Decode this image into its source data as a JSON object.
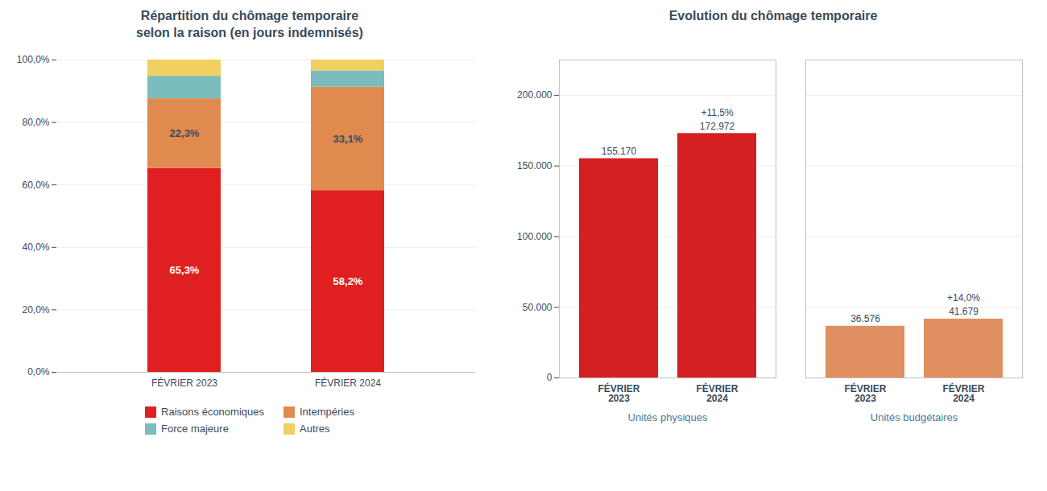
{
  "chart_data": [
    {
      "type": "bar",
      "title": "Répartition du chômage temporaire\nselon la raison (en jours indemnisés)",
      "stacked": true,
      "categories": [
        "FÉVRIER 2023",
        "FÉVRIER 2024"
      ],
      "series": [
        {
          "name": "Raisons économiques",
          "color": "#e02020",
          "values": [
            65.3,
            58.2
          ],
          "data_labels": true,
          "value_labels": [
            "65,3%",
            "58,2%"
          ]
        },
        {
          "name": "Intempéries",
          "color": "#e08a50",
          "values": [
            22.3,
            33.1
          ],
          "data_labels": true,
          "value_labels": [
            "22,3%",
            "33,1%"
          ]
        },
        {
          "name": "Force majeure",
          "color": "#7bbcbc",
          "values": [
            7.2,
            5.2
          ]
        },
        {
          "name": "Autres",
          "color": "#f0d060",
          "values": [
            5.2,
            3.5
          ]
        }
      ],
      "ylim": [
        0,
        100
      ],
      "yticks": [
        {
          "value": 0,
          "label": "0,0%"
        },
        {
          "value": 20,
          "label": "20,0%"
        },
        {
          "value": 40,
          "label": "40,0%"
        },
        {
          "value": 60,
          "label": "60,0%"
        },
        {
          "value": 80,
          "label": "80,0%"
        },
        {
          "value": 100,
          "label": "100,0%"
        }
      ],
      "grid": true,
      "legend": "bottom"
    },
    {
      "type": "bar",
      "title": "Evolution du chômage temporaire",
      "categories": [
        "FÉVRIER\n2023",
        "FÉVRIER\n2024",
        "FÉVRIER\n2023",
        "FÉVRIER\n2024"
      ],
      "groups": [
        "Unités physiques",
        "Unités physiques",
        "Unités budgétaires",
        "Unités budgétaires"
      ],
      "values": [
        155170,
        172972,
        36576,
        41679
      ],
      "data_labels": true,
      "value_labels": [
        "155.170",
        "172.972",
        "36.576",
        "41.679"
      ],
      "annotations": [
        null,
        "+11,5%",
        null,
        "+14,0%"
      ],
      "colors": [
        "#d42020",
        "#d42020",
        "#e09060",
        "#e09060"
      ],
      "ylim": [
        0,
        225000
      ],
      "yticks": [
        0,
        {
          "value": 50000,
          "label": "50.000"
        },
        {
          "value": 100000,
          "label": "100.000"
        },
        {
          "value": 150000,
          "label": "150.000"
        },
        {
          "value": 200000,
          "label": "200.000"
        }
      ],
      "grid": true
    }
  ]
}
